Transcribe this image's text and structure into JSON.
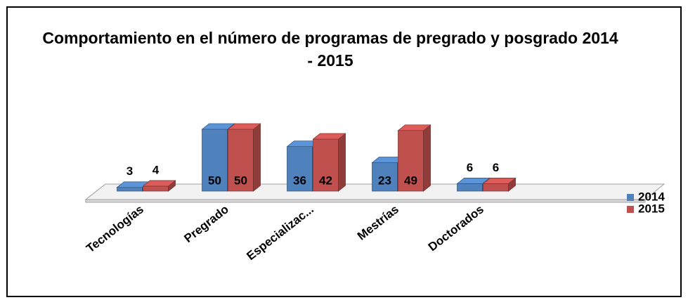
{
  "chart_data": {
    "type": "bar3d",
    "title": "Comportamiento en el número de programas de pregrado y posgrado 2014 - 2015",
    "categories": [
      "Tecnologías",
      "Pregrado",
      "Especializac...",
      "Mestrías",
      "Doctorados"
    ],
    "series": [
      {
        "name": "2014",
        "color": "#4f81bd",
        "values": [
          3,
          50,
          36,
          23,
          6
        ]
      },
      {
        "name": "2015",
        "color": "#c0504d",
        "values": [
          4,
          50,
          42,
          49,
          6
        ]
      }
    ],
    "legend": "right"
  }
}
